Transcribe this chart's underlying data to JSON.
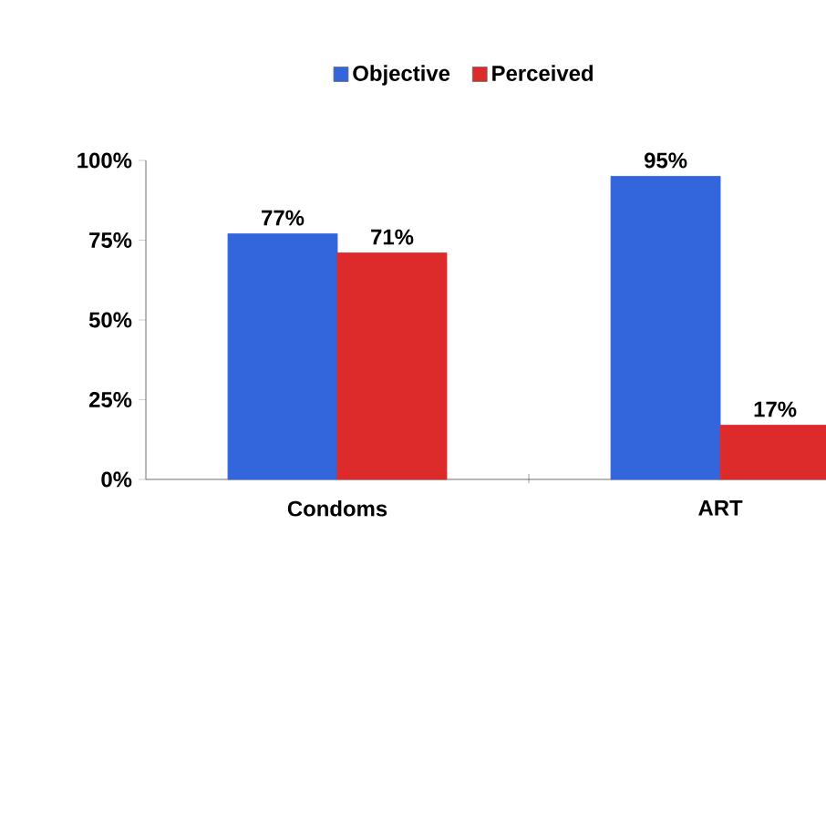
{
  "chart_data": {
    "type": "bar",
    "categories": [
      "Condoms",
      "ART"
    ],
    "series": [
      {
        "name": "Objective",
        "color": "#3366dd",
        "values": [
          77,
          95
        ],
        "value_labels": [
          "77%",
          "95%"
        ]
      },
      {
        "name": "Perceived",
        "color": "#dd2a2a",
        "values": [
          71,
          17
        ],
        "value_labels": [
          "71%",
          "17%"
        ]
      }
    ],
    "ylim": [
      0,
      100
    ],
    "yticks": [
      {
        "value": 0,
        "label": "0%"
      },
      {
        "value": 25,
        "label": "25%"
      },
      {
        "value": 50,
        "label": "50%"
      },
      {
        "value": 75,
        "label": "75%"
      },
      {
        "value": 100,
        "label": "100%"
      }
    ],
    "legend": "top",
    "grid": false
  }
}
